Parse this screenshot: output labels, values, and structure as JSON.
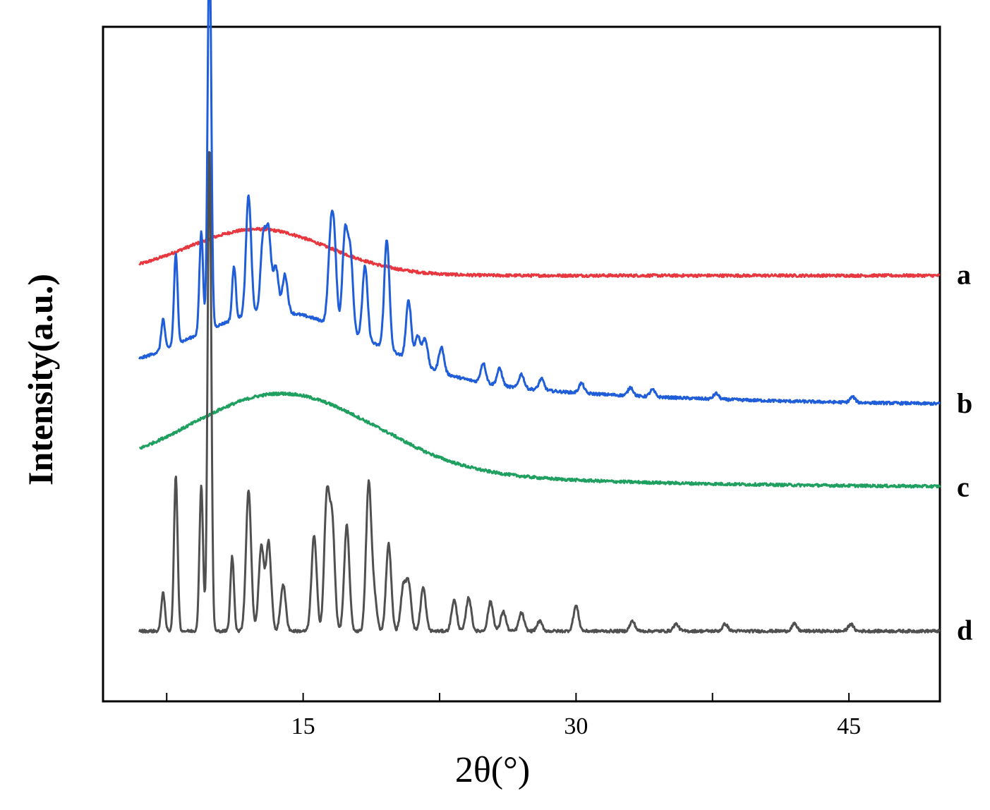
{
  "chart_data": {
    "type": "line",
    "xlabel": "2θ(°)",
    "ylabel": "Intensity(a.u.)",
    "xlim": [
      4,
      50
    ],
    "ylim": [
      -0.5,
      4.3
    ],
    "x_ticks": [
      7.5,
      15,
      22.5,
      30,
      37.5,
      45
    ],
    "x_tick_labels": [
      "",
      "15",
      "",
      "30",
      "",
      "45"
    ],
    "grid": false,
    "legend": "none",
    "series": [
      {
        "name": "a",
        "color": "#e8373f",
        "peaks": [],
        "halo": {
          "center": 12.5,
          "width": 5.5,
          "height": 0.33
        },
        "baseline": 2.53,
        "tail": 0.0
      },
      {
        "name": "b",
        "color": "#1f5ed8",
        "peaks": [
          {
            "x": 7.3,
            "h": 0.22
          },
          {
            "x": 8.0,
            "h": 0.64
          },
          {
            "x": 9.4,
            "h": 0.72
          },
          {
            "x": 9.85,
            "h": 2.8
          },
          {
            "x": 11.2,
            "h": 0.38
          },
          {
            "x": 12.0,
            "h": 0.85
          },
          {
            "x": 12.8,
            "h": 0.52
          },
          {
            "x": 13.1,
            "h": 0.55
          },
          {
            "x": 13.5,
            "h": 0.32
          },
          {
            "x": 14.0,
            "h": 0.27
          },
          {
            "x": 16.7,
            "h": 0.55
          },
          {
            "x": 16.5,
            "h": 0.5
          },
          {
            "x": 17.3,
            "h": 0.68
          },
          {
            "x": 17.6,
            "h": 0.55
          },
          {
            "x": 18.4,
            "h": 0.52
          },
          {
            "x": 19.6,
            "h": 0.78
          },
          {
            "x": 20.8,
            "h": 0.42
          },
          {
            "x": 21.3,
            "h": 0.2
          },
          {
            "x": 21.7,
            "h": 0.2
          },
          {
            "x": 22.6,
            "h": 0.18
          },
          {
            "x": 24.9,
            "h": 0.14
          },
          {
            "x": 25.8,
            "h": 0.12
          },
          {
            "x": 27.0,
            "h": 0.1
          },
          {
            "x": 28.1,
            "h": 0.08
          },
          {
            "x": 30.3,
            "h": 0.07
          },
          {
            "x": 33.0,
            "h": 0.06
          },
          {
            "x": 34.2,
            "h": 0.05
          },
          {
            "x": 37.7,
            "h": 0.04
          },
          {
            "x": 45.2,
            "h": 0.04
          }
        ],
        "halo": {
          "center": 13.5,
          "width": 6.5,
          "height": 0.45
        },
        "baseline": 1.6,
        "tail": 0.22
      },
      {
        "name": "c",
        "color": "#1fa060",
        "peaks": [],
        "halo": {
          "center": 13.8,
          "width": 7.0,
          "height": 0.55
        },
        "baseline": 1.02,
        "tail": 0.12
      },
      {
        "name": "d",
        "color": "#505050",
        "peaks": [
          {
            "x": 7.3,
            "h": 0.28
          },
          {
            "x": 8.0,
            "h": 1.1
          },
          {
            "x": 9.4,
            "h": 1.03
          },
          {
            "x": 9.85,
            "h": 3.45
          },
          {
            "x": 11.1,
            "h": 0.53
          },
          {
            "x": 12.0,
            "h": 1.0
          },
          {
            "x": 12.7,
            "h": 0.6
          },
          {
            "x": 13.1,
            "h": 0.63
          },
          {
            "x": 13.9,
            "h": 0.33
          },
          {
            "x": 15.6,
            "h": 0.68
          },
          {
            "x": 16.3,
            "h": 0.93
          },
          {
            "x": 16.6,
            "h": 0.75
          },
          {
            "x": 17.4,
            "h": 0.75
          },
          {
            "x": 18.6,
            "h": 1.04
          },
          {
            "x": 18.9,
            "h": 0.25
          },
          {
            "x": 19.7,
            "h": 0.62
          },
          {
            "x": 20.5,
            "h": 0.3
          },
          {
            "x": 20.8,
            "h": 0.33
          },
          {
            "x": 21.6,
            "h": 0.31
          },
          {
            "x": 23.3,
            "h": 0.22
          },
          {
            "x": 24.1,
            "h": 0.24
          },
          {
            "x": 25.3,
            "h": 0.21
          },
          {
            "x": 26.0,
            "h": 0.14
          },
          {
            "x": 27.0,
            "h": 0.13
          },
          {
            "x": 28.0,
            "h": 0.07
          },
          {
            "x": 30.0,
            "h": 0.18
          },
          {
            "x": 33.1,
            "h": 0.07
          },
          {
            "x": 35.5,
            "h": 0.05
          },
          {
            "x": 38.2,
            "h": 0.05
          },
          {
            "x": 42.0,
            "h": 0.05
          },
          {
            "x": 45.1,
            "h": 0.05
          }
        ],
        "halo": {
          "center": 20.0,
          "width": 5.0,
          "height": 0.0
        },
        "baseline": 0.0,
        "tail": 0.0
      }
    ]
  }
}
